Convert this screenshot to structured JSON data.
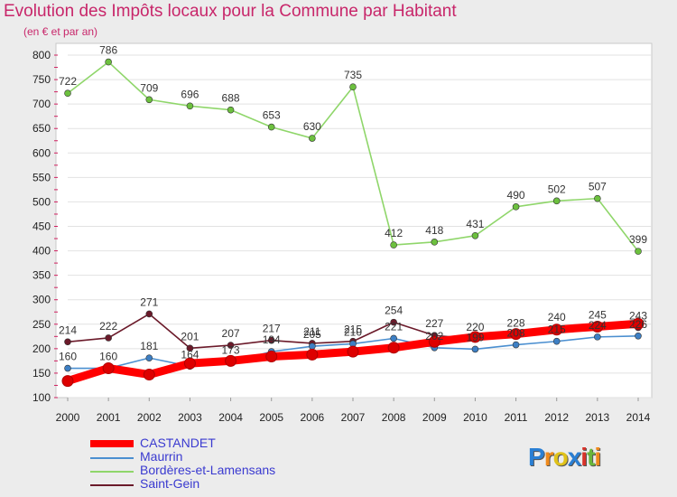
{
  "title": "Evolution des Impôts locaux pour la Commune par Habitant",
  "subtitle": "(en € et par an)",
  "logo": {
    "letters": [
      "P",
      "r",
      "o",
      "x",
      "i",
      "t",
      "i"
    ],
    "colors": [
      "#2a7fd4",
      "#f08a1c",
      "#e0c21a",
      "#2a7fd4",
      "#d8332a",
      "#6ab63a",
      "#f08a1c"
    ]
  },
  "chart_data": {
    "type": "line",
    "title": "Evolution des Impôts locaux pour la Commune par Habitant",
    "ylabel": "(en € et par an)",
    "xlabel": "",
    "x": [
      "2000",
      "2001",
      "2002",
      "2003",
      "2004",
      "2005",
      "2006",
      "2007",
      "2008",
      "2009",
      "2010",
      "2011",
      "2012",
      "2013",
      "2014"
    ],
    "ylim": [
      100,
      800
    ],
    "yticks": [
      "100",
      "150",
      "200",
      "250",
      "300",
      "350",
      "400",
      "450",
      "500",
      "550",
      "600",
      "650",
      "700",
      "750",
      "800"
    ],
    "series": [
      {
        "name": "CASTANDET",
        "color": "#ff0000",
        "thick": true,
        "marker": "#dd0000",
        "labels": false,
        "values": [
          134,
          160,
          147,
          170,
          175,
          184,
          188,
          194,
          202,
          214,
          224,
          230,
          239,
          245,
          251
        ]
      },
      {
        "name": "Maurrin",
        "color": "#4b8fd0",
        "marker": "#3d7fc4",
        "labels": true,
        "values": [
          160,
          160,
          181,
          164,
          173,
          194,
          205,
          210,
          221,
          202,
          199,
          208,
          215,
          224,
          226
        ]
      },
      {
        "name": "Bordères-et-Lamensans",
        "color": "#8fd66a",
        "marker": "#6cc03e",
        "labels": true,
        "values": [
          722,
          786,
          709,
          696,
          688,
          653,
          630,
          735,
          412,
          418,
          431,
          490,
          502,
          507,
          399
        ]
      },
      {
        "name": "Saint-Gein",
        "color": "#6b1a2a",
        "marker": "#6b1a2a",
        "labels": true,
        "values": [
          214,
          222,
          271,
          201,
          207,
          217,
          211,
          215,
          254,
          227,
          220,
          228,
          240,
          245,
          243
        ]
      }
    ]
  }
}
